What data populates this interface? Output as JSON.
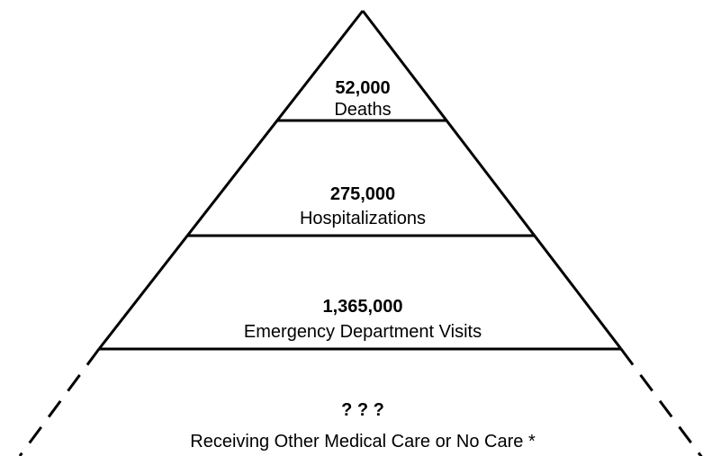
{
  "levels": [
    {
      "count": "52,000",
      "label": "Deaths"
    },
    {
      "count": "275,000",
      "label": "Hospitalizations"
    },
    {
      "count": "1,365,000",
      "label": "Emergency Department Visits"
    },
    {
      "count": "? ? ?",
      "label": "Receiving Other Medical Care or No Care *"
    }
  ]
}
